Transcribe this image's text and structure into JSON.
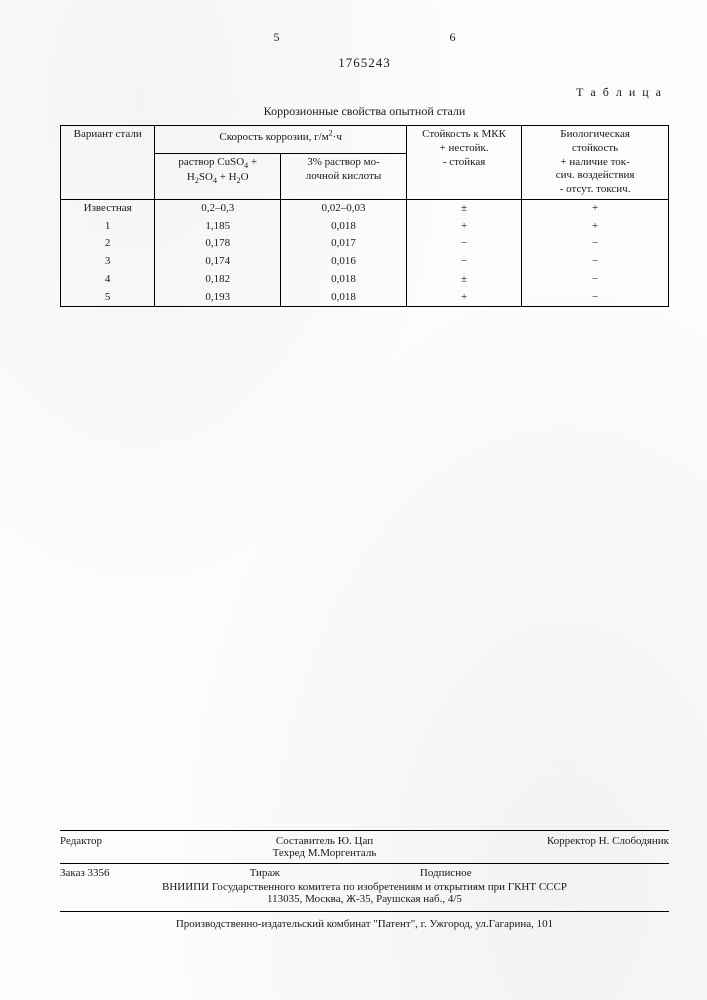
{
  "header": {
    "page_left": "5",
    "page_right": "6",
    "patent_number": "1765243"
  },
  "table": {
    "label": "Т а б л и ц а",
    "title": "Коррозионные свойства опытной стали",
    "head": {
      "variant": "Вариант стали",
      "speed_group": "Скорость коррозии, г/м²·ч",
      "sol1": "раствор CuSO₄ + H₂SO₄ + H₂O",
      "sol2": "3% раствор мо­лочной кислоты",
      "mkk": "Стойкость к МКК\n+ нестойк.\n- стойкая",
      "bio": "Биологическая стойкость\n+ наличие ток­сич. воздействия\n- отсут. токсич."
    },
    "rows": [
      {
        "variant": "Известная",
        "sol1": "0,2–0,3",
        "sol2": "0,02–0,03",
        "mkk": "±",
        "bio": "+"
      },
      {
        "variant": "1",
        "sol1": "1,185",
        "sol2": "0,018",
        "mkk": "+",
        "bio": "+"
      },
      {
        "variant": "2",
        "sol1": "0,178",
        "sol2": "0,017",
        "mkk": "−",
        "bio": "−"
      },
      {
        "variant": "3",
        "sol1": "0,174",
        "sol2": "0,016",
        "mkk": "−",
        "bio": "−"
      },
      {
        "variant": "4",
        "sol1": "0,182",
        "sol2": "0,018",
        "mkk": "±",
        "bio": "−"
      },
      {
        "variant": "5",
        "sol1": "0,193",
        "sol2": "0,018",
        "mkk": "+",
        "bio": "−"
      }
    ]
  },
  "footer": {
    "editor_label": "Редактор",
    "compiler_line": "Составитель Ю. Цап",
    "tech_line": "Техред М.Моргенталь",
    "corrector_line": "Корректор Н. Слободяник",
    "order": "Заказ 3356",
    "tirazh": "Тираж",
    "subscr": "Подписное",
    "org_line1": "ВНИИПИ Государственного комитета по изобретениям и открытиям при ГКНТ СССР",
    "org_line2": "113035, Москва, Ж-35, Раушская наб., 4/5",
    "bottom": "Производственно-издательский комбинат \"Патент\", г. Ужгород, ул.Гагарина, 101"
  }
}
